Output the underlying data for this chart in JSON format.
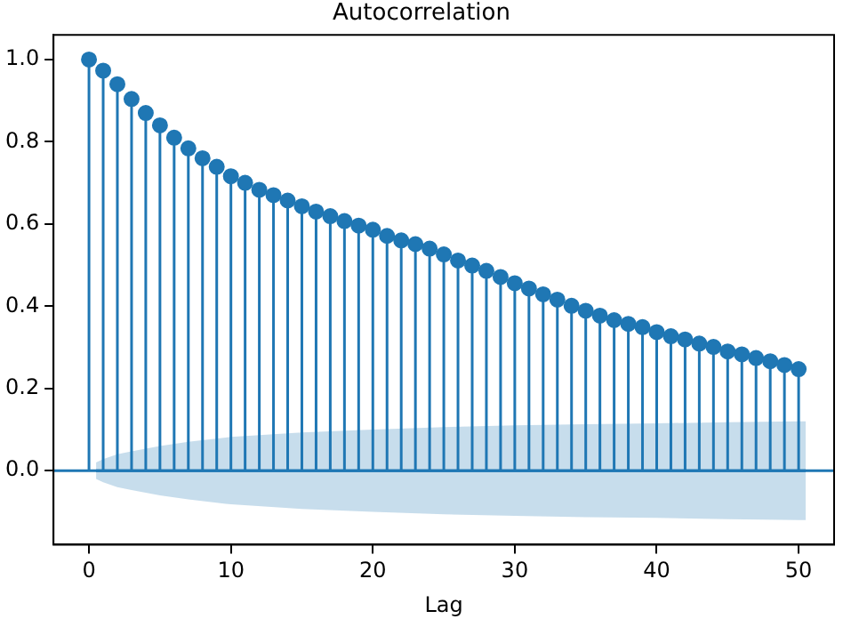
{
  "chart_data": {
    "type": "lollipop",
    "title": "Autocorrelation",
    "xlabel": "Lag",
    "xlim": [
      -2.5,
      52.5
    ],
    "xticks": [
      0,
      10,
      20,
      30,
      40,
      50
    ],
    "ylim": [
      -0.18,
      1.06
    ],
    "yticks": [
      {
        "value": 0,
        "label": "0.0"
      },
      0.2,
      0.4,
      0.6,
      0.8,
      {
        "value": 1,
        "label": "1.0"
      }
    ],
    "grid": false,
    "legend": false,
    "marker": "circle",
    "ref_lines": [
      {
        "axis": "y",
        "value": 0,
        "color": "#1f77b4"
      }
    ],
    "series": [
      {
        "color": "#1f77b4",
        "x": [
          0,
          1,
          2,
          3,
          4,
          5,
          6,
          7,
          8,
          9,
          10,
          11,
          12,
          13,
          14,
          15,
          16,
          17,
          18,
          19,
          20,
          21,
          22,
          23,
          24,
          25,
          26,
          27,
          28,
          29,
          30,
          31,
          32,
          33,
          34,
          35,
          36,
          37,
          38,
          39,
          40,
          41,
          42,
          43,
          44,
          45,
          46,
          47,
          48,
          49,
          50
        ],
        "values": [
          1.0,
          0.973,
          0.94,
          0.904,
          0.87,
          0.84,
          0.81,
          0.784,
          0.76,
          0.739,
          0.716,
          0.7,
          0.683,
          0.67,
          0.657,
          0.643,
          0.63,
          0.619,
          0.607,
          0.596,
          0.586,
          0.571,
          0.56,
          0.551,
          0.54,
          0.526,
          0.511,
          0.499,
          0.486,
          0.471,
          0.456,
          0.443,
          0.429,
          0.416,
          0.401,
          0.389,
          0.377,
          0.366,
          0.357,
          0.349,
          0.337,
          0.327,
          0.319,
          0.309,
          0.301,
          0.29,
          0.283,
          0.274,
          0.266,
          0.257,
          0.247
        ]
      },
      {
        "type": "line",
        "marker": "none",
        "color": "#1f77b4",
        "x": [
          0.5,
          1,
          2,
          3,
          5,
          7,
          10,
          15,
          20,
          25,
          30,
          35,
          40,
          45,
          50,
          50.5
        ],
        "values": [
          0,
          0,
          0,
          0,
          0,
          0,
          0,
          0,
          0,
          0,
          0,
          0,
          0,
          0,
          0,
          0
        ],
        "lower": [
          -0.02,
          -0.028,
          -0.04,
          -0.047,
          -0.06,
          -0.07,
          -0.082,
          -0.093,
          -0.1,
          -0.106,
          -0.11,
          -0.113,
          -0.115,
          -0.118,
          -0.12,
          -0.12
        ],
        "upper": [
          0.02,
          0.028,
          0.04,
          0.047,
          0.06,
          0.07,
          0.082,
          0.093,
          0.1,
          0.106,
          0.11,
          0.113,
          0.115,
          0.118,
          0.12,
          0.12
        ]
      }
    ]
  }
}
